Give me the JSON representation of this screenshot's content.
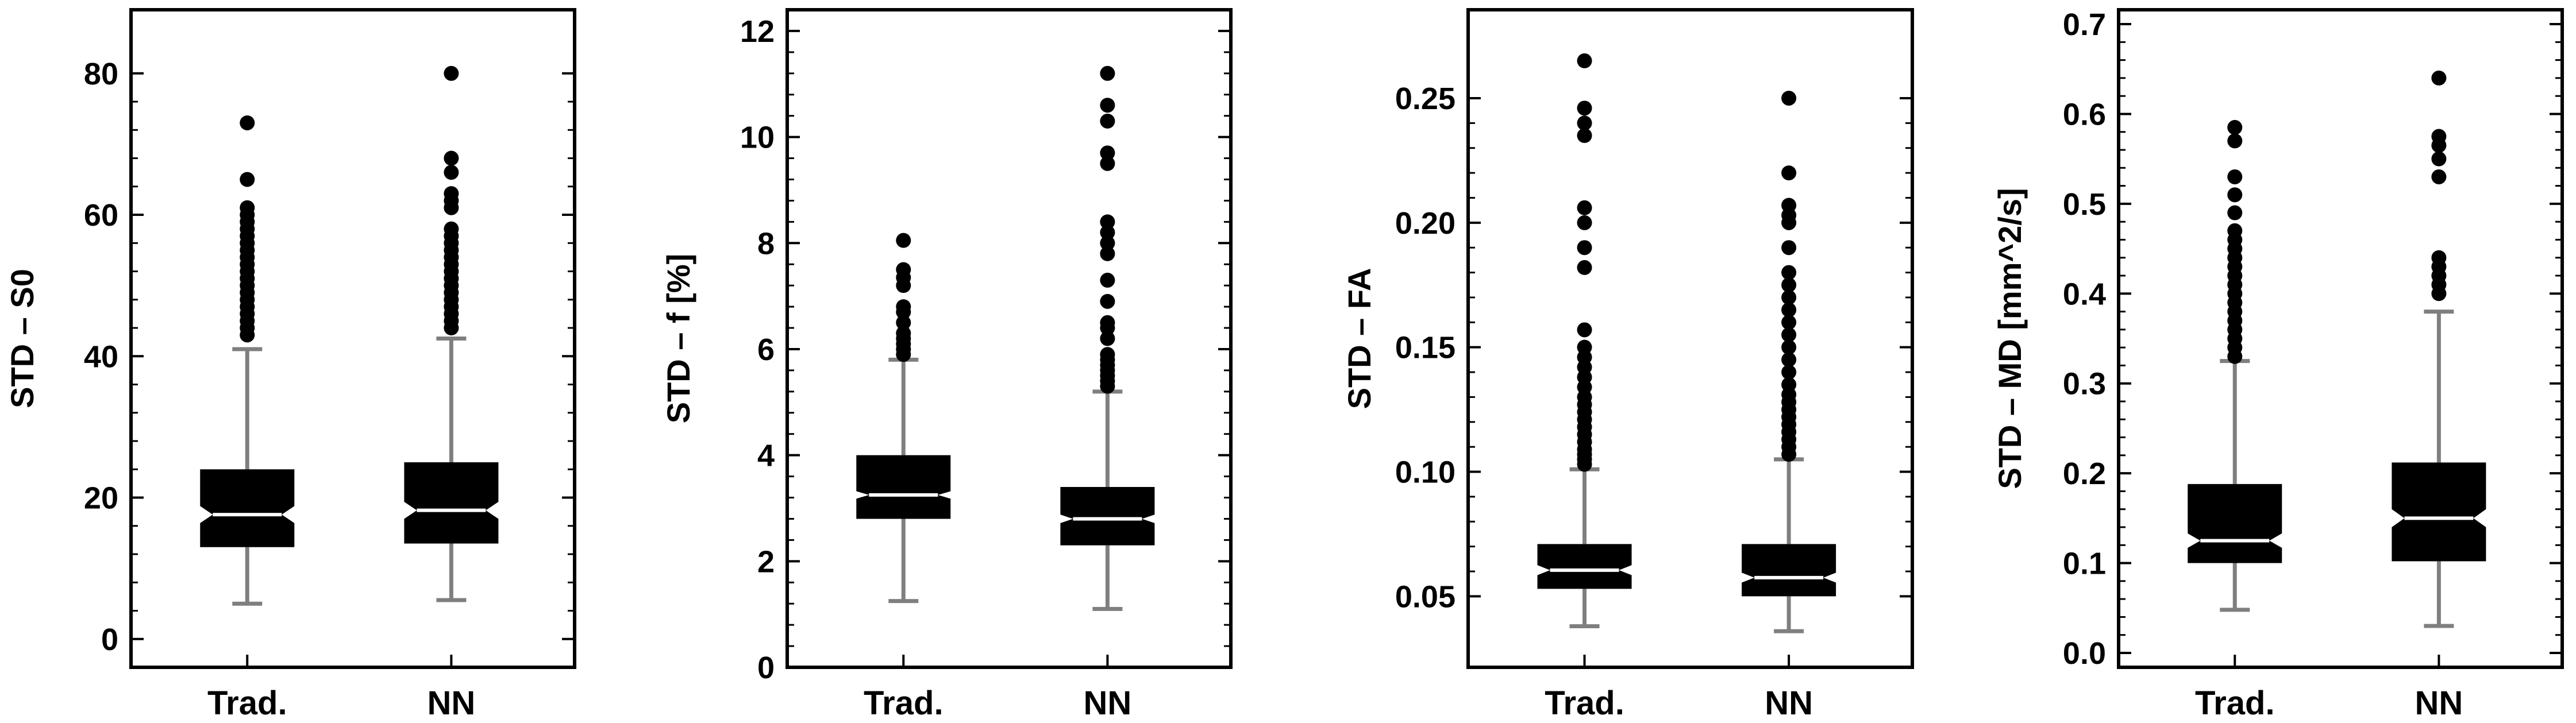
{
  "chart_data": [
    {
      "type": "box",
      "ylabel": "STD – S0",
      "ylim": [
        -4,
        89
      ],
      "yticks": [
        0,
        20,
        40,
        60,
        80
      ],
      "tick_labels": [
        "0",
        "20",
        "40",
        "60",
        "80"
      ],
      "categories": [
        "Trad.",
        "NN"
      ],
      "boxes": [
        {
          "name": "Trad.",
          "whisker_low": 5.0,
          "q1": 13.0,
          "notch_low": 16.4,
          "median": 17.6,
          "notch_high": 18.8,
          "q3": 24.0,
          "whisker_high": 41.0,
          "outliers": [
            43,
            44,
            45,
            46,
            47,
            48,
            49,
            50,
            51,
            52,
            53,
            54,
            55,
            56,
            57,
            58,
            59,
            60,
            61,
            65,
            73
          ]
        },
        {
          "name": "NN",
          "whisker_low": 5.5,
          "q1": 13.5,
          "notch_low": 17.0,
          "median": 18.2,
          "notch_high": 19.4,
          "q3": 25.0,
          "whisker_high": 42.5,
          "outliers": [
            44,
            45,
            46,
            47,
            48,
            49,
            50,
            51,
            52,
            53,
            54,
            55,
            56,
            57,
            58,
            61,
            62,
            63,
            66,
            68,
            80
          ]
        }
      ]
    },
    {
      "type": "box",
      "ylabel": "STD – f  [%]",
      "ylim": [
        0,
        12.4
      ],
      "yticks": [
        0,
        2,
        4,
        6,
        8,
        10,
        12
      ],
      "tick_labels": [
        "0",
        "2",
        "4",
        "6",
        "8",
        "10",
        "12"
      ],
      "categories": [
        "Trad.",
        "NN"
      ],
      "boxes": [
        {
          "name": "Trad.",
          "whisker_low": 1.25,
          "q1": 2.8,
          "notch_low": 3.18,
          "median": 3.25,
          "notch_high": 3.32,
          "q3": 4.0,
          "whisker_high": 5.8,
          "outliers": [
            5.9,
            6.0,
            6.1,
            6.2,
            6.3,
            6.5,
            6.7,
            6.8,
            7.2,
            7.35,
            7.5,
            8.05
          ]
        },
        {
          "name": "NN",
          "whisker_low": 1.1,
          "q1": 2.3,
          "notch_low": 2.72,
          "median": 2.8,
          "notch_high": 2.88,
          "q3": 3.4,
          "whisker_high": 5.2,
          "outliers": [
            5.3,
            5.4,
            5.5,
            5.6,
            5.7,
            5.8,
            5.9,
            6.2,
            6.4,
            6.5,
            6.9,
            7.3,
            7.8,
            8.0,
            8.2,
            8.4,
            9.5,
            9.7,
            10.3,
            10.6,
            11.2
          ]
        }
      ]
    },
    {
      "type": "box",
      "ylabel": "STD – FA",
      "ylim": [
        0.0215,
        0.2855
      ],
      "yticks": [
        0.05,
        0.1,
        0.15,
        0.2,
        0.25
      ],
      "tick_labels": [
        "0.05",
        "0.10",
        "0.15",
        "0.20",
        "0.25"
      ],
      "categories": [
        "Trad.",
        "NN"
      ],
      "boxes": [
        {
          "name": "Trad.",
          "whisker_low": 0.038,
          "q1": 0.053,
          "notch_low": 0.0585,
          "median": 0.0605,
          "notch_high": 0.0625,
          "q3": 0.071,
          "whisker_high": 0.101,
          "outliers": [
            0.103,
            0.105,
            0.107,
            0.109,
            0.112,
            0.115,
            0.118,
            0.121,
            0.124,
            0.127,
            0.13,
            0.134,
            0.138,
            0.142,
            0.146,
            0.15,
            0.157,
            0.182,
            0.19,
            0.2,
            0.206,
            0.235,
            0.24,
            0.246,
            0.265
          ]
        },
        {
          "name": "NN",
          "whisker_low": 0.036,
          "q1": 0.05,
          "notch_low": 0.0555,
          "median": 0.0575,
          "notch_high": 0.0595,
          "q3": 0.071,
          "whisker_high": 0.105,
          "outliers": [
            0.107,
            0.11,
            0.113,
            0.116,
            0.119,
            0.122,
            0.125,
            0.128,
            0.131,
            0.135,
            0.14,
            0.145,
            0.15,
            0.155,
            0.16,
            0.165,
            0.17,
            0.175,
            0.18,
            0.19,
            0.2,
            0.203,
            0.207,
            0.22,
            0.25
          ]
        }
      ]
    },
    {
      "type": "box",
      "ylabel": "STD – MD  [mm^2/s]",
      "ylim": [
        -0.016,
        0.716
      ],
      "yticks": [
        0.0,
        0.1,
        0.2,
        0.3,
        0.4,
        0.5,
        0.6,
        0.7
      ],
      "tick_labels": [
        "0.0",
        "0.1",
        "0.2",
        "0.3",
        "0.4",
        "0.5",
        "0.6",
        "0.7"
      ],
      "categories": [
        "Trad.",
        "NN"
      ],
      "boxes": [
        {
          "name": "Trad.",
          "whisker_low": 0.048,
          "q1": 0.1,
          "notch_low": 0.117,
          "median": 0.125,
          "notch_high": 0.133,
          "q3": 0.188,
          "whisker_high": 0.325,
          "outliers": [
            0.33,
            0.34,
            0.35,
            0.36,
            0.37,
            0.38,
            0.39,
            0.4,
            0.41,
            0.42,
            0.43,
            0.44,
            0.45,
            0.46,
            0.47,
            0.49,
            0.51,
            0.53,
            0.57,
            0.585
          ]
        },
        {
          "name": "NN",
          "whisker_low": 0.03,
          "q1": 0.102,
          "notch_low": 0.14,
          "median": 0.15,
          "notch_high": 0.16,
          "q3": 0.212,
          "whisker_high": 0.38,
          "outliers": [
            0.4,
            0.41,
            0.42,
            0.43,
            0.44,
            0.53,
            0.55,
            0.565,
            0.575,
            0.64
          ]
        }
      ]
    }
  ]
}
